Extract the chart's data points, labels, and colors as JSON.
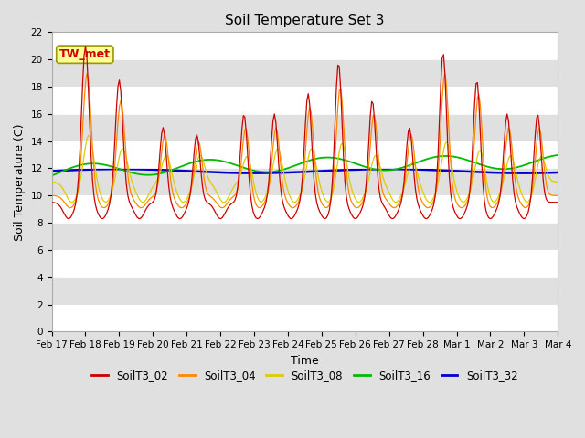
{
  "title": "Soil Temperature Set 3",
  "xlabel": "Time",
  "ylabel": "Soil Temperature (C)",
  "ylim": [
    0,
    22
  ],
  "xlim": [
    0,
    15
  ],
  "xtick_labels": [
    "Feb 17",
    "Feb 18",
    "Feb 19",
    "Feb 20",
    "Feb 21",
    "Feb 22",
    "Feb 23",
    "Feb 24",
    "Feb 25",
    "Feb 26",
    "Feb 27",
    "Feb 28",
    "Mar 1",
    "Mar 2",
    "Mar 3",
    "Mar 4"
  ],
  "colors": {
    "SoilT3_02": "#cc0000",
    "SoilT3_04": "#ff8800",
    "SoilT3_08": "#ddcc00",
    "SoilT3_16": "#00bb00",
    "SoilT3_32": "#0000cc"
  },
  "annotation_text": "TW_met",
  "annotation_color": "#cc0000",
  "annotation_bg": "#ffff99",
  "bg_color": "#e0e0e0",
  "plot_bg": "#e0e0e0",
  "title_fontsize": 11,
  "axis_label_fontsize": 9,
  "tick_fontsize": 7.5,
  "legend_fontsize": 8.5
}
